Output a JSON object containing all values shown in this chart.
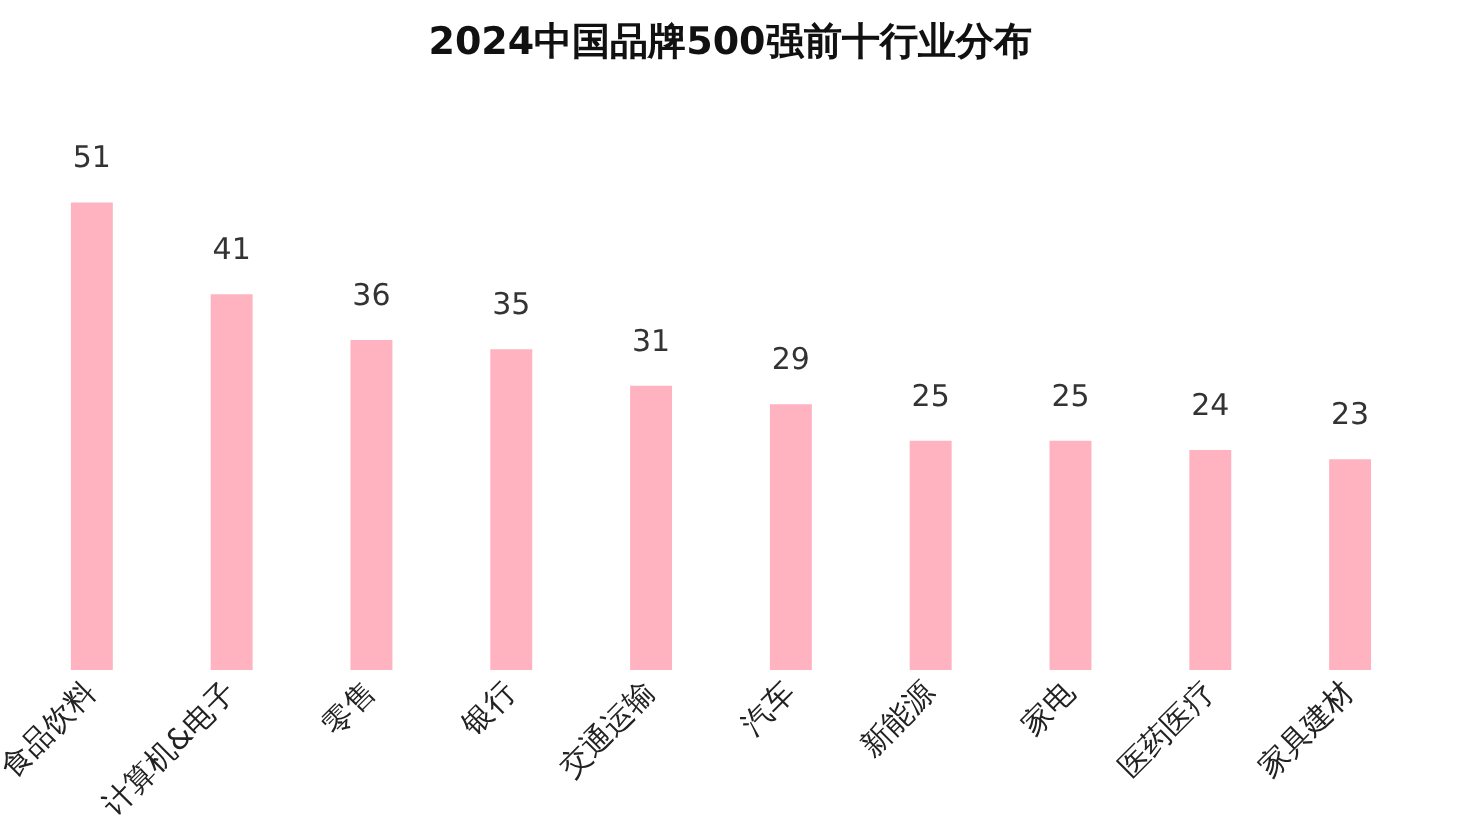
{
  "chart_data": {
    "type": "bar",
    "title": "2024中国品牌500强前十行业分布",
    "categories": [
      "食品饮料",
      "计算机&电子",
      "零售",
      "银行",
      "交通运输",
      "汽车",
      "新能源",
      "家电",
      "医药医疗",
      "家具建材"
    ],
    "values": [
      51,
      41,
      36,
      35,
      31,
      29,
      25,
      25,
      24,
      23
    ],
    "color": "#ffb3c0",
    "data_labels": true,
    "grid": false,
    "legend": false
  }
}
